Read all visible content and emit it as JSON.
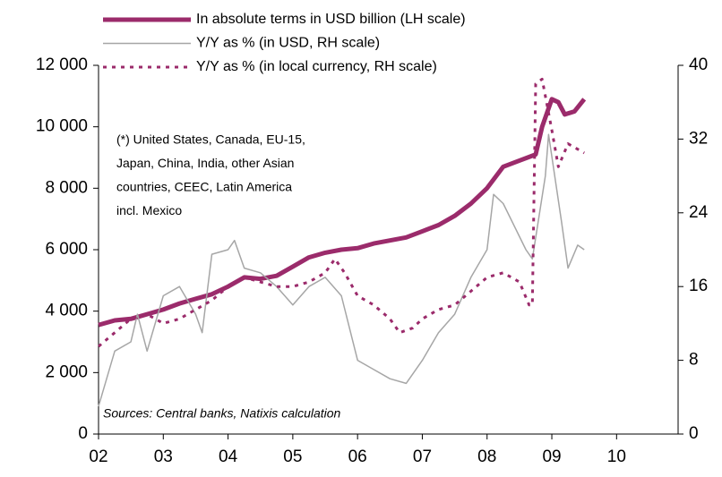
{
  "chart_data": {
    "type": "line",
    "legend": "top",
    "annotation": [
      "(*) United States, Canada, EU-15,",
      "Japan, China, India, other Asian",
      "countries, CEEC, Latin America",
      "incl. Mexico"
    ],
    "source": "Sources: Central banks, Natixis calculation",
    "xlim": [
      2002,
      2010.95
    ],
    "xticks": [
      {
        "value": 2002,
        "label": "02"
      },
      {
        "value": 2003,
        "label": "03"
      },
      {
        "value": 2004,
        "label": "04"
      },
      {
        "value": 2005,
        "label": "05"
      },
      {
        "value": 2006,
        "label": "06"
      },
      {
        "value": 2007,
        "label": "07"
      },
      {
        "value": 2008,
        "label": "08"
      },
      {
        "value": 2009,
        "label": "09"
      },
      {
        "value": 2010,
        "label": "10"
      }
    ],
    "ylim": [
      0,
      12000
    ],
    "yticks": [
      0,
      {
        "value": 2000,
        "label": "2 000"
      },
      {
        "value": 4000,
        "label": "4 000"
      },
      {
        "value": 6000,
        "label": "6 000"
      },
      {
        "value": 8000,
        "label": "8 000"
      },
      {
        "value": 10000,
        "label": "10 000"
      },
      {
        "value": 12000,
        "label": "12 000"
      }
    ],
    "y2lim": [
      0,
      40
    ],
    "y2ticks": [
      0,
      8,
      16,
      24,
      32,
      40
    ],
    "series": [
      {
        "name": "In absolute terms in USD billion (LH scale)",
        "color": "#9b2b6b",
        "style": "solid-thick",
        "x": [
          2002,
          2002.25,
          2002.5,
          2002.75,
          2003,
          2003.25,
          2003.5,
          2003.75,
          2004,
          2004.25,
          2004.5,
          2004.75,
          2005,
          2005.25,
          2005.5,
          2005.75,
          2006,
          2006.25,
          2006.5,
          2006.75,
          2007,
          2007.25,
          2007.5,
          2007.75,
          2008,
          2008.25,
          2008.5,
          2008.75,
          2008.85,
          2009,
          2009.1,
          2009.2,
          2009.35,
          2009.5
        ],
        "values": [
          3550,
          3700,
          3750,
          3900,
          4050,
          4250,
          4400,
          4550,
          4800,
          5100,
          5050,
          5150,
          5450,
          5750,
          5900,
          6000,
          6050,
          6200,
          6300,
          6400,
          6600,
          6800,
          7100,
          7500,
          8000,
          8700,
          8900,
          9100,
          10000,
          10900,
          10800,
          10400,
          10500,
          10900
        ]
      },
      {
        "name": "Y/Y as % (in USD, RH scale)",
        "color": "#a6a6a6",
        "style": "solid-thin",
        "axis": "y2",
        "x": [
          2002,
          2002.25,
          2002.5,
          2002.6,
          2002.75,
          2003,
          2003.25,
          2003.5,
          2003.6,
          2003.75,
          2004,
          2004.1,
          2004.25,
          2004.5,
          2004.75,
          2005,
          2005.25,
          2005.5,
          2005.75,
          2006,
          2006.25,
          2006.5,
          2006.75,
          2007,
          2007.25,
          2007.5,
          2007.75,
          2008,
          2008.1,
          2008.25,
          2008.6,
          2008.7,
          2008.9,
          2008.95,
          2009.15,
          2009.25,
          2009.4,
          2009.5
        ],
        "values": [
          3,
          9,
          10,
          13,
          9,
          15,
          16,
          13,
          11,
          19.5,
          20,
          21,
          18,
          17.5,
          16,
          14,
          16,
          17,
          15,
          8,
          7,
          6,
          5.5,
          8,
          11,
          13,
          17,
          20,
          26,
          25,
          20,
          19,
          28,
          32.5,
          23,
          18,
          20.5,
          20
        ]
      },
      {
        "name": "Y/Y as % (in local currency, RH scale)",
        "color": "#9b2b6b",
        "style": "dashed",
        "axis": "y2",
        "x": [
          2002,
          2002.25,
          2002.5,
          2002.75,
          2003,
          2003.25,
          2003.5,
          2003.75,
          2004,
          2004.25,
          2004.5,
          2004.75,
          2005,
          2005.25,
          2005.5,
          2005.65,
          2005.8,
          2006,
          2006.25,
          2006.5,
          2006.65,
          2006.85,
          2007,
          2007.25,
          2007.5,
          2007.75,
          2008,
          2008.25,
          2008.5,
          2008.65,
          2008.7,
          2008.75,
          2008.85,
          2009,
          2009.1,
          2009.25,
          2009.5
        ],
        "values": [
          9.5,
          11,
          12.5,
          13,
          12,
          12.5,
          13.5,
          14.5,
          16,
          17,
          16.5,
          16,
          16,
          16.5,
          17.5,
          19,
          17.5,
          15,
          14,
          12.5,
          11,
          11.5,
          12.5,
          13.5,
          14,
          15.5,
          17,
          17.5,
          16.5,
          14,
          14,
          38,
          38.5,
          33,
          29,
          31.5,
          30.5
        ]
      }
    ]
  }
}
